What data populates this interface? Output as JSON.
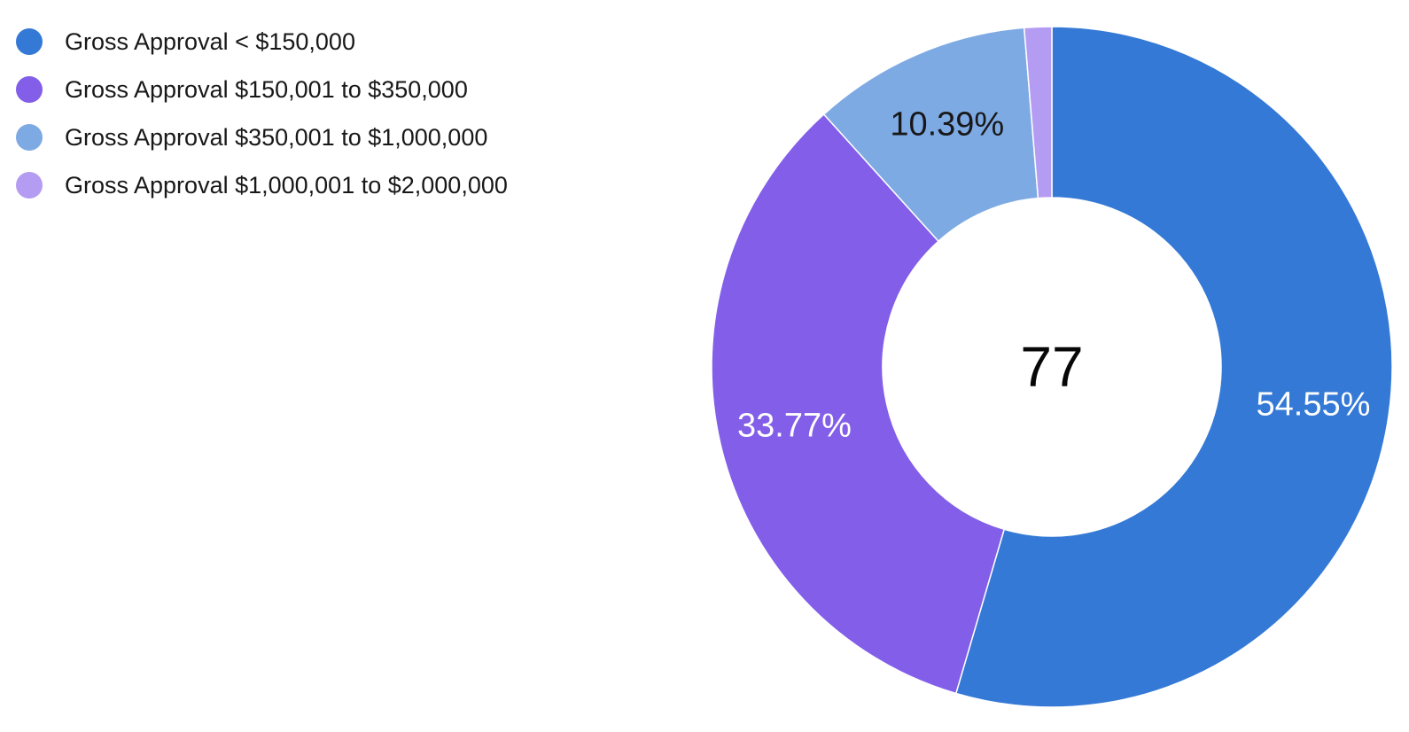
{
  "chart_data": {
    "type": "pie",
    "donut": true,
    "center_total": "77",
    "legend_placement": "top-left",
    "slices": [
      {
        "name": "Gross Approval < $150,000",
        "value": 42,
        "label": "54.55%",
        "color": "#3479d6",
        "label_color": "#ffffff"
      },
      {
        "name": "Gross Approval $150,001 to $350,000",
        "value": 26,
        "label": "33.77%",
        "color": "#825ee9",
        "label_color": "#ffffff"
      },
      {
        "name": "Gross Approval $350,001 to $1,000,000",
        "value": 8,
        "label": "10.39%",
        "color": "#7eaae4",
        "label_color": "#181818"
      },
      {
        "name": "Gross Approval $1,000,001 to $2,000,000",
        "value": 1,
        "label": "",
        "color": "#b59cf3",
        "label_color": "#181818"
      }
    ]
  }
}
